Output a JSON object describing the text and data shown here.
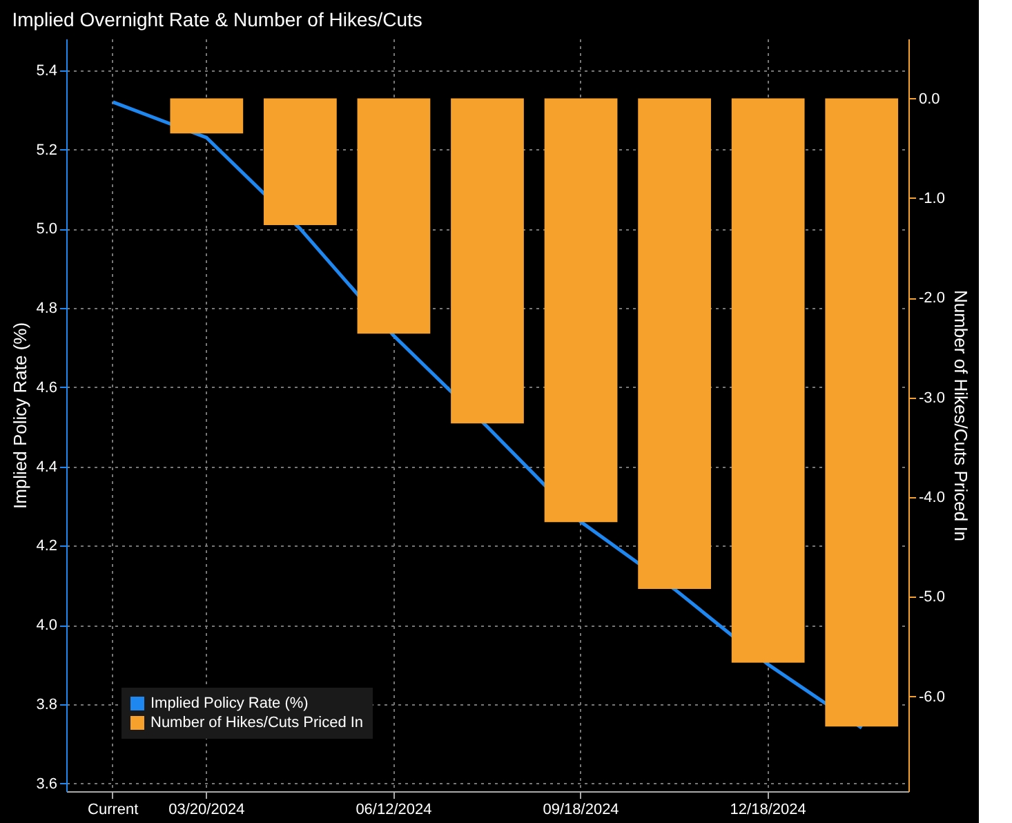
{
  "chart_data": {
    "type": "bar",
    "title": "Implied Overnight Rate & Number of Hikes/Cuts",
    "ylabel": "Implied Policy Rate (%)",
    "y2label": "Number of Hikes/Cuts Priced In",
    "categories": [
      "Current",
      "03/20/2024",
      null,
      "06/12/2024",
      null,
      "09/18/2024",
      null,
      "12/18/2024",
      null
    ],
    "series": [
      {
        "name": "Implied Policy Rate (%)",
        "type": "line",
        "color": "#1e88f0",
        "values": [
          5.32,
          5.23,
          5.0,
          4.73,
          4.5,
          4.26,
          4.09,
          3.9,
          3.74
        ]
      },
      {
        "name": "Number of Hikes/Cuts Priced In",
        "axis": "y2",
        "color": "#f7a12d",
        "values": [
          0.0,
          -0.35,
          -1.27,
          -2.36,
          -3.26,
          -4.25,
          -4.92,
          -5.66,
          -6.3
        ]
      }
    ],
    "ylim": [
      3.58,
      5.48
    ],
    "yticks": [
      3.6,
      3.8,
      {
        "value": 4.0,
        "label": "4.0"
      },
      4.2,
      4.4,
      4.6,
      4.8,
      {
        "value": 5.0,
        "label": "5.0"
      },
      5.2,
      5.4
    ],
    "y2lim": [
      -6.95,
      0.6
    ],
    "y2ticks": [
      {
        "value": -6,
        "label": "-6.0"
      },
      {
        "value": -5,
        "label": "-5.0"
      },
      {
        "value": -4,
        "label": "-4.0"
      },
      {
        "value": -3,
        "label": "-3.0"
      },
      {
        "value": -2,
        "label": "-2.0"
      },
      {
        "value": -1,
        "label": "-1.0"
      },
      {
        "value": 0,
        "label": "0.0"
      }
    ],
    "grid": true,
    "legend": "bottom left",
    "marker": "none"
  }
}
